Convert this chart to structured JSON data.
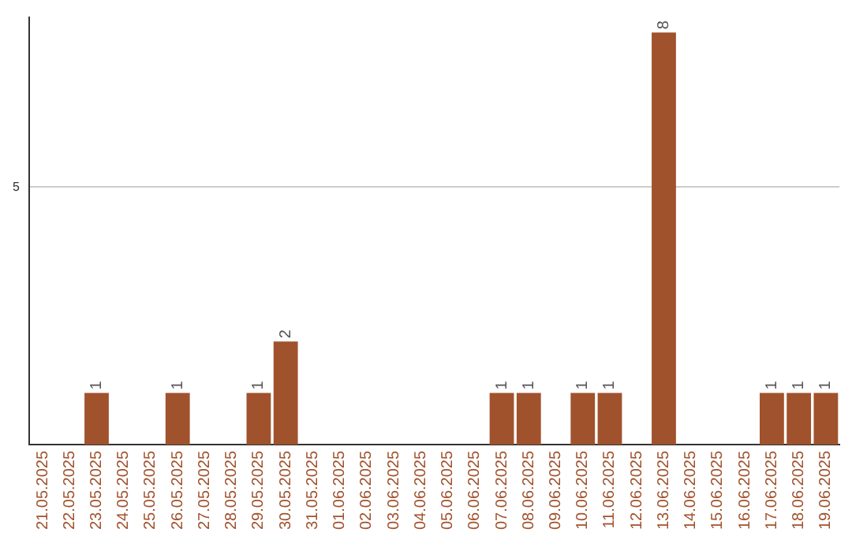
{
  "chart_data": {
    "type": "bar",
    "categories": [
      "21.05.2025",
      "22.05.2025",
      "23.05.2025",
      "24.05.2025",
      "25.05.2025",
      "26.05.2025",
      "27.05.2025",
      "28.05.2025",
      "29.05.2025",
      "30.05.2025",
      "31.05.2025",
      "01.06.2025",
      "02.06.2025",
      "03.06.2025",
      "04.06.2025",
      "05.06.2025",
      "06.06.2025",
      "07.06.2025",
      "08.06.2025",
      "09.06.2025",
      "10.06.2025",
      "11.06.2025",
      "12.06.2025",
      "13.06.2025",
      "14.06.2025",
      "15.06.2025",
      "16.06.2025",
      "17.06.2025",
      "18.06.2025",
      "19.06.2025"
    ],
    "values": [
      0,
      0,
      1,
      0,
      0,
      1,
      0,
      0,
      1,
      2,
      0,
      0,
      0,
      0,
      0,
      0,
      0,
      1,
      1,
      0,
      1,
      1,
      0,
      8,
      0,
      0,
      0,
      1,
      1,
      1
    ],
    "color": "#a0522d",
    "value_labels": [
      null,
      null,
      "1",
      null,
      null,
      "1",
      null,
      null,
      "1",
      "2",
      null,
      null,
      null,
      null,
      null,
      null,
      null,
      "1",
      "1",
      null,
      "1",
      "1",
      null,
      "8",
      null,
      null,
      null,
      "1",
      "1",
      "1"
    ],
    "ylim": [
      0,
      8.3
    ],
    "yticks": [
      5
    ],
    "grid": "y"
  }
}
